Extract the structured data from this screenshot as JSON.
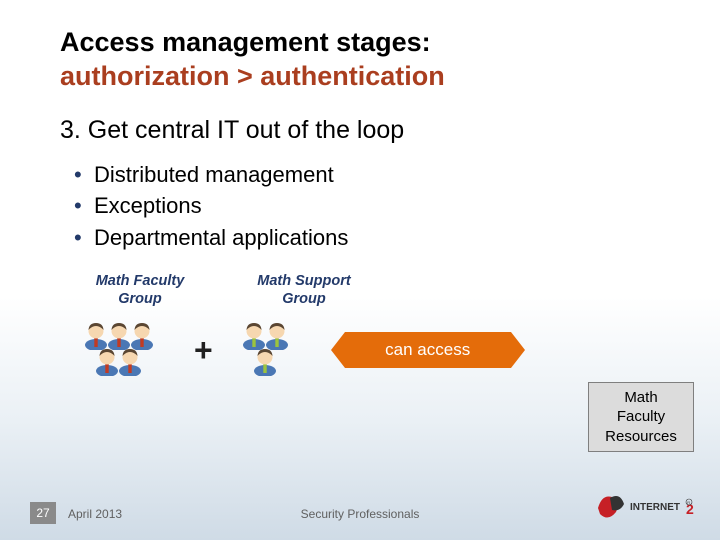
{
  "title": {
    "line1": "Access management stages:",
    "line2": "authorization > authentication",
    "line2_color": "#aa3e1f"
  },
  "subtitle": "3. Get central IT out of the loop",
  "bullets": [
    "Distributed management",
    "Exceptions",
    "Departmental applications"
  ],
  "groups": {
    "left": {
      "label_l1": "Math Faculty",
      "label_l2": "Group",
      "people_count": 5,
      "tie_color": "#c23b22",
      "shirt_color": "#4a77b4"
    },
    "right": {
      "label_l1": "Math Support",
      "label_l2": "Group",
      "people_count": 3,
      "tie_color": "#9cc43d",
      "shirt_color": "#4a77b4"
    }
  },
  "plus_symbol": "+",
  "arrow": {
    "label": "can access",
    "color": "#e46c0a",
    "text_color": "#ffffff"
  },
  "resource_box": {
    "line1": "Math",
    "line2": "Faculty",
    "line3": "Resources",
    "bg": "#dcdcdc",
    "border": "#7f7f7f"
  },
  "footer": {
    "page_number": "27",
    "date": "April 2013",
    "center": "Security Professionals"
  },
  "logo": {
    "text": "INTERNET",
    "sub": "2",
    "red": "#c62026",
    "dark": "#333333"
  }
}
